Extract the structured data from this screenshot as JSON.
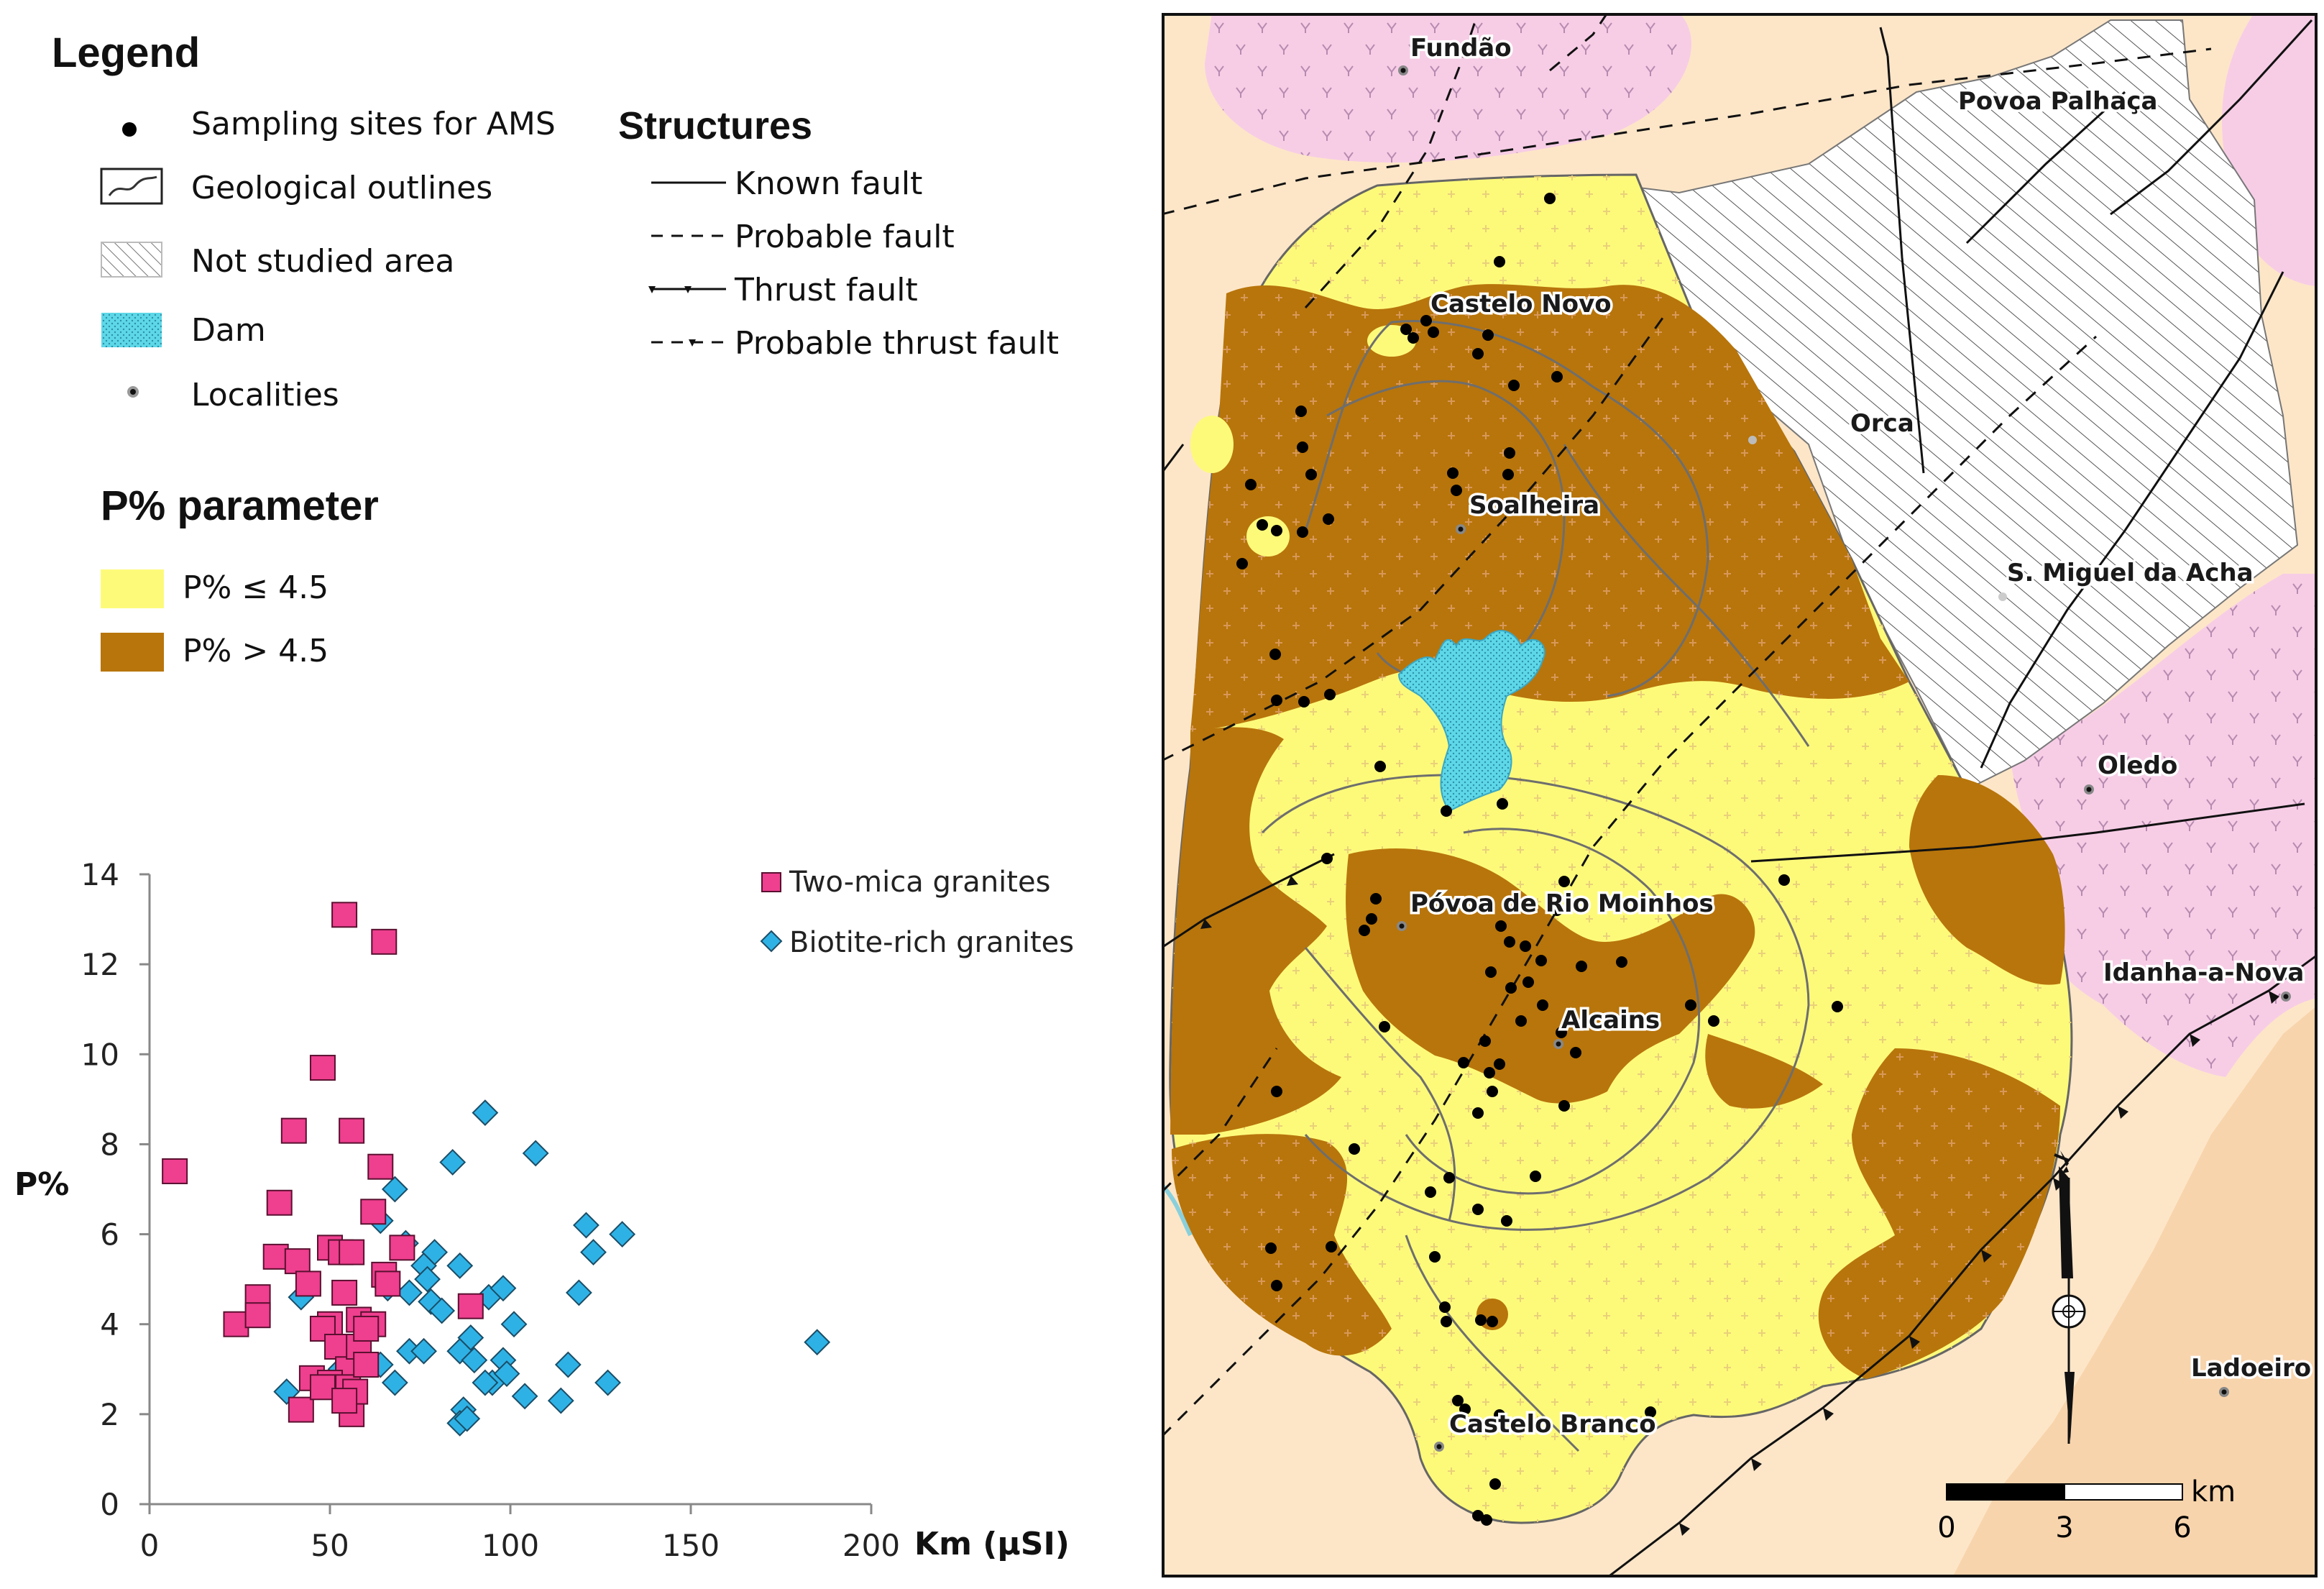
{
  "legend": {
    "title": "Legend",
    "items": [
      {
        "label": "Sampling sites for AMS",
        "symbol": "dot-icon"
      },
      {
        "label": "Geological outlines",
        "symbol": "outline-icon"
      },
      {
        "label": "Not studied area",
        "symbol": "hatch-icon"
      },
      {
        "label": "Dam",
        "symbol": "dam-icon"
      },
      {
        "label": "Localities",
        "symbol": "locality-icon"
      }
    ]
  },
  "structures": {
    "title": "Structures",
    "items": [
      {
        "label": "Known fault"
      },
      {
        "label": "Probable fault"
      },
      {
        "label": "Thrust fault"
      },
      {
        "label": "Probable thrust fault"
      }
    ]
  },
  "p_parameter": {
    "title": "P% parameter",
    "items": [
      {
        "label": "P% ≤ 4.5",
        "color": "#fdfa7a"
      },
      {
        "label": "P% > 4.5",
        "color": "#b8750b"
      }
    ]
  },
  "colors": {
    "two_mica": "#ef3f8f",
    "biotite": "#2eb2e6",
    "low_p": "#fdfa7a",
    "high_p": "#b8750b",
    "background": "#fde6c8",
    "pink_area": "#f7cde6",
    "dam": "#5ed8e8"
  },
  "chart_data": {
    "type": "scatter",
    "title": "",
    "xlabel": "Km (µSI)",
    "ylabel": "P%",
    "xlim": [
      0,
      200
    ],
    "ylim": [
      0,
      14
    ],
    "xticks": [
      "0",
      "50",
      "100",
      "150",
      "200"
    ],
    "yticks": [
      "0",
      "2",
      "4",
      "6",
      "8",
      "10",
      "12",
      "14"
    ],
    "legend_position": "top-right",
    "series": [
      {
        "name": "Two-mica granites",
        "marker": "square",
        "points": [
          [
            7,
            7.4
          ],
          [
            54,
            13.1
          ],
          [
            65,
            12.5
          ],
          [
            48,
            9.7
          ],
          [
            40,
            8.3
          ],
          [
            56,
            8.3
          ],
          [
            36,
            6.7
          ],
          [
            64,
            7.5
          ],
          [
            35,
            5.5
          ],
          [
            41,
            5.4
          ],
          [
            50,
            5.7
          ],
          [
            53,
            5.6
          ],
          [
            56,
            5.6
          ],
          [
            62,
            6.5
          ],
          [
            65,
            5.1
          ],
          [
            70,
            5.7
          ],
          [
            30,
            4.6
          ],
          [
            44,
            4.9
          ],
          [
            50,
            4.0
          ],
          [
            54,
            4.7
          ],
          [
            58,
            4.1
          ],
          [
            62,
            4.0
          ],
          [
            66,
            4.9
          ],
          [
            89,
            4.4
          ],
          [
            24,
            4.0
          ],
          [
            30,
            4.2
          ],
          [
            48,
            3.9
          ],
          [
            52,
            3.5
          ],
          [
            55,
            3.0
          ],
          [
            58,
            3.5
          ],
          [
            60,
            3.9
          ],
          [
            45,
            2.8
          ],
          [
            50,
            2.7
          ],
          [
            55,
            2.6
          ],
          [
            42,
            2.1
          ],
          [
            56,
            2.0
          ],
          [
            57,
            2.5
          ],
          [
            48,
            2.6
          ],
          [
            54,
            2.3
          ],
          [
            60,
            3.1
          ]
        ]
      },
      {
        "name": "Biotite-rich granites",
        "marker": "diamond",
        "points": [
          [
            93,
            8.7
          ],
          [
            107,
            7.8
          ],
          [
            84,
            7.6
          ],
          [
            68,
            7.0
          ],
          [
            64,
            6.3
          ],
          [
            121,
            6.2
          ],
          [
            131,
            6.0
          ],
          [
            123,
            5.6
          ],
          [
            71,
            5.8
          ],
          [
            79,
            5.6
          ],
          [
            86,
            5.3
          ],
          [
            76,
            5.3
          ],
          [
            66,
            4.8
          ],
          [
            72,
            4.7
          ],
          [
            77,
            5.0
          ],
          [
            94,
            4.6
          ],
          [
            98,
            4.8
          ],
          [
            119,
            4.7
          ],
          [
            42,
            4.6
          ],
          [
            78,
            4.5
          ],
          [
            81,
            4.3
          ],
          [
            89,
            3.7
          ],
          [
            101,
            4.0
          ],
          [
            185,
            3.6
          ],
          [
            64,
            3.1
          ],
          [
            72,
            3.4
          ],
          [
            76,
            3.4
          ],
          [
            86,
            3.4
          ],
          [
            90,
            3.2
          ],
          [
            95,
            2.7
          ],
          [
            98,
            3.2
          ],
          [
            99,
            2.9
          ],
          [
            116,
            3.1
          ],
          [
            53,
            3.0
          ],
          [
            68,
            2.7
          ],
          [
            93,
            2.7
          ],
          [
            104,
            2.4
          ],
          [
            114,
            2.3
          ],
          [
            127,
            2.7
          ],
          [
            38,
            2.5
          ],
          [
            87,
            2.1
          ],
          [
            86,
            1.8
          ],
          [
            88,
            1.9
          ]
        ]
      }
    ]
  },
  "map": {
    "localities": [
      {
        "name": "Fundão"
      },
      {
        "name": "Povoa Palhaça"
      },
      {
        "name": "Castelo Novo"
      },
      {
        "name": "Orca"
      },
      {
        "name": "Soalheira"
      },
      {
        "name": "S. Miguel da Acha"
      },
      {
        "name": "Oledo"
      },
      {
        "name": "Póvoa de Rio Moinhos"
      },
      {
        "name": "Alcains"
      },
      {
        "name": "Idanha-a-Nova"
      },
      {
        "name": "Ladoeiro"
      },
      {
        "name": "Castelo Branco"
      }
    ],
    "scale": {
      "unit": "km",
      "ticks": [
        "0",
        "3",
        "6"
      ]
    }
  }
}
